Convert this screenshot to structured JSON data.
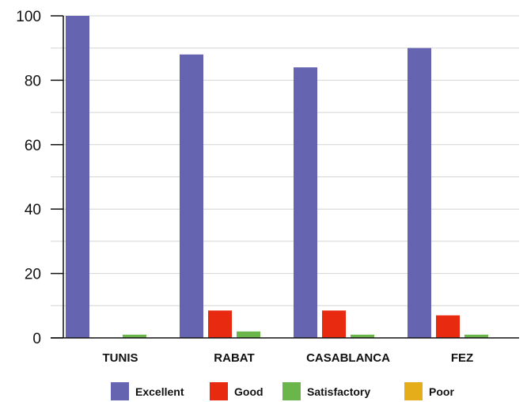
{
  "chart_data": {
    "type": "bar",
    "categories": [
      "TUNIS",
      "RABAT",
      "CASABLANCA",
      "FEZ"
    ],
    "series": [
      {
        "name": "Excellent",
        "values": [
          100,
          88,
          84,
          90
        ],
        "color": "#6464b0"
      },
      {
        "name": "Good",
        "values": [
          0,
          8.5,
          8.5,
          7
        ],
        "color": "#e82a10"
      },
      {
        "name": "Satisfactory",
        "values": [
          1,
          2,
          1,
          1
        ],
        "color": "#6ab64a"
      },
      {
        "name": "Poor",
        "values": [
          0,
          0,
          0,
          0
        ],
        "color": "#e6ad1a"
      }
    ],
    "ylim": [
      0,
      100
    ],
    "yticks": [
      0,
      20,
      40,
      60,
      80,
      100
    ],
    "grid": true,
    "legend_position": "bottom"
  }
}
